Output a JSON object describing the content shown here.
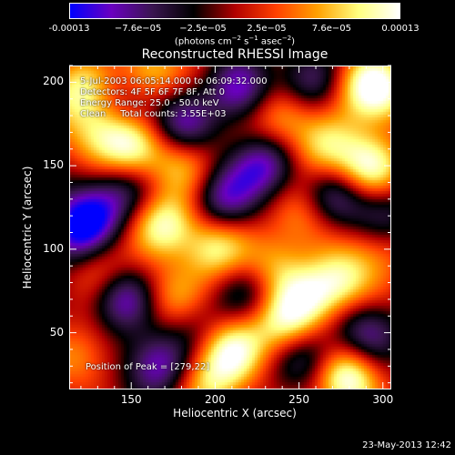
{
  "colorbar": {
    "ticks": [
      "-0.00013",
      "−7.6e−05",
      "−2.5e−05",
      "2.5e−05",
      "7.6e−05",
      "0.00013"
    ],
    "tick_values": [
      -0.00013,
      -7.6e-05,
      -2.5e-05,
      2.5e-05,
      7.6e-05,
      0.00013
    ],
    "unit_prefix": "(photons cm",
    "unit_sup1": "−2",
    "unit_mid": " s",
    "unit_sup2": "−1",
    "unit_mid2": " asec",
    "unit_sup3": "−2",
    "unit_suffix": ")",
    "range": [
      -0.00013,
      0.00013
    ]
  },
  "chart_data": {
    "type": "heatmap",
    "title": "Reconstructed RHESSI Image",
    "xlabel": "Heliocentric X (arcsec)",
    "ylabel": "Heliocentric Y (arcsec)",
    "xlim": [
      113,
      305
    ],
    "ylim": [
      16,
      210
    ],
    "xticks": [
      150,
      200,
      250,
      300
    ],
    "yticks": [
      50,
      100,
      150,
      200
    ],
    "peak_position": [
      279,
      22
    ],
    "colorscale": [
      "#0000ff",
      "#6a00c0",
      "#3a1550",
      "#000000",
      "#b00000",
      "#ff4000",
      "#ffa000",
      "#ffff80",
      "#ffffff"
    ],
    "blobs": [
      {
        "x": 118,
        "y": 195,
        "amp": 0.8
      },
      {
        "x": 130,
        "y": 170,
        "amp": 0.7
      },
      {
        "x": 160,
        "y": 205,
        "amp": 0.85
      },
      {
        "x": 150,
        "y": 160,
        "amp": 0.9
      },
      {
        "x": 170,
        "y": 115,
        "amp": 0.95
      },
      {
        "x": 180,
        "y": 150,
        "amp": 0.6
      },
      {
        "x": 200,
        "y": 100,
        "amp": 0.85
      },
      {
        "x": 240,
        "y": 180,
        "amp": 0.75
      },
      {
        "x": 265,
        "y": 160,
        "amp": 0.7
      },
      {
        "x": 292,
        "y": 150,
        "amp": 1.0
      },
      {
        "x": 290,
        "y": 200,
        "amp": 0.85
      },
      {
        "x": 300,
        "y": 190,
        "amp": 0.6
      },
      {
        "x": 252,
        "y": 120,
        "amp": 0.55
      },
      {
        "x": 235,
        "y": 90,
        "amp": 0.6
      },
      {
        "x": 255,
        "y": 70,
        "amp": 0.7
      },
      {
        "x": 275,
        "y": 80,
        "amp": 0.85
      },
      {
        "x": 240,
        "y": 55,
        "amp": 0.8
      },
      {
        "x": 210,
        "y": 40,
        "amp": 0.95
      },
      {
        "x": 195,
        "y": 20,
        "amp": 0.7
      },
      {
        "x": 279,
        "y": 22,
        "amp": 1.15
      },
      {
        "x": 175,
        "y": 70,
        "amp": 0.6
      },
      {
        "x": 130,
        "y": 90,
        "amp": 0.55
      },
      {
        "x": 120,
        "y": 35,
        "amp": 0.5
      },
      {
        "x": 298,
        "y": 100,
        "amp": 0.5
      },
      {
        "x": 215,
        "y": 195,
        "amp": -0.85
      },
      {
        "x": 180,
        "y": 175,
        "amp": -0.75
      },
      {
        "x": 255,
        "y": 200,
        "amp": -0.7
      },
      {
        "x": 230,
        "y": 150,
        "amp": -0.9
      },
      {
        "x": 205,
        "y": 130,
        "amp": -0.8
      },
      {
        "x": 125,
        "y": 120,
        "amp": -0.95
      },
      {
        "x": 115,
        "y": 105,
        "amp": -0.7
      },
      {
        "x": 145,
        "y": 70,
        "amp": -0.85
      },
      {
        "x": 165,
        "y": 30,
        "amp": -0.9
      },
      {
        "x": 270,
        "y": 130,
        "amp": -0.7
      },
      {
        "x": 300,
        "y": 120,
        "amp": -0.6
      },
      {
        "x": 290,
        "y": 50,
        "amp": -0.75
      },
      {
        "x": 255,
        "y": 35,
        "amp": -0.6
      },
      {
        "x": 220,
        "y": 75,
        "amp": -0.5
      },
      {
        "x": 145,
        "y": 135,
        "amp": -0.55
      },
      {
        "x": 150,
        "y": 190,
        "amp": -0.45
      },
      {
        "x": 188,
        "y": 55,
        "amp": -0.4
      }
    ]
  },
  "annotations": {
    "date": "5-Jul-2003 06:05:14.000 to 06:09:32.000",
    "detectors": "Detectors: 4F 5F 6F 7F 8F, Att 0",
    "energy": "Energy Range: 25.0 - 50.0 keV",
    "clean": "Clean     Total counts: 3.55E+03",
    "peak": "Position of Peak = [279,22]"
  },
  "footer": {
    "date": "23-May-2013 12:42"
  }
}
